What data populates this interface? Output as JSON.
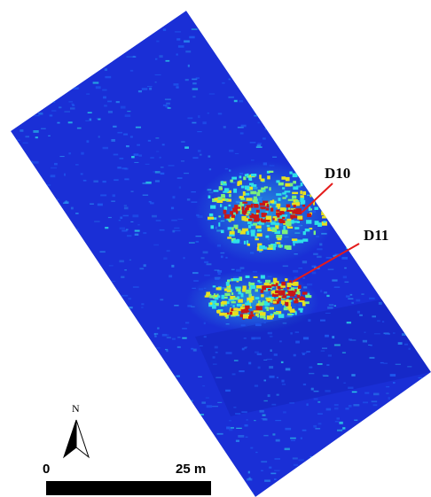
{
  "map": {
    "colors": {
      "background": "#1a2fd6",
      "low": "#1f5cf0",
      "mid": "#2ee0e8",
      "high_yellow": "#e8e020",
      "high_red": "#c81818",
      "leader_line": "#e41b1b"
    },
    "anomalies": [
      {
        "label": "D10"
      },
      {
        "label": "D11"
      }
    ]
  },
  "north_arrow": {
    "letter": "N",
    "icon": "north-arrow-icon"
  },
  "scale_bar": {
    "start_label": "0",
    "end_label": "25 m"
  }
}
